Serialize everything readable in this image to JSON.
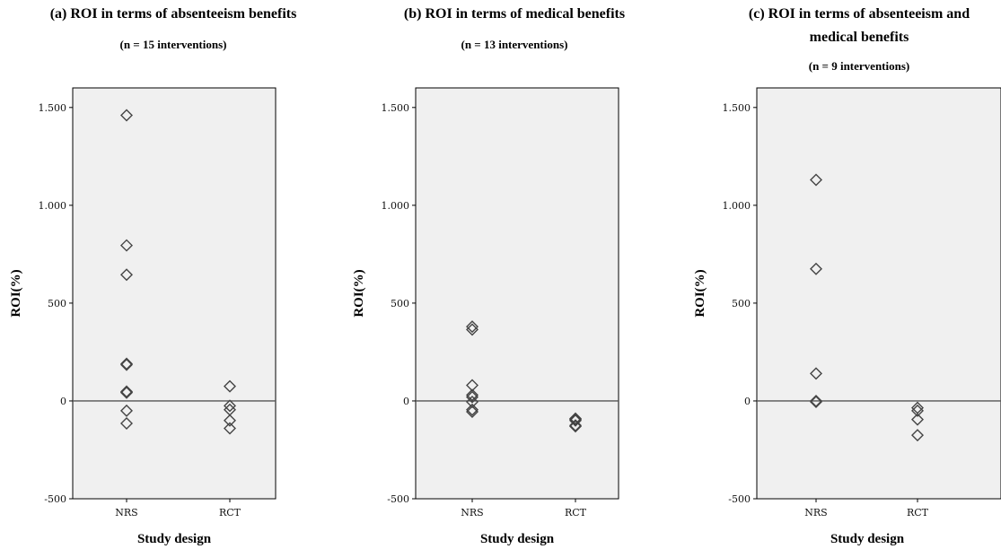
{
  "chart_data": [
    {
      "type": "scatter",
      "title": "(a) ROI in terms of absenteeism benefits",
      "subtitle": "(n = 15 interventions)",
      "xlabel": "Study design",
      "ylabel": "ROI(%)",
      "categories": [
        "NRS",
        "RCT"
      ],
      "ylim": [
        -500,
        1600
      ],
      "yticks": [
        -500,
        0,
        500,
        1000,
        1500
      ],
      "ytick_labels": [
        "-500",
        "0",
        "500",
        "1.000",
        "1.500"
      ],
      "reference_line": 0,
      "points": [
        {
          "x": "NRS",
          "y": 1460
        },
        {
          "x": "NRS",
          "y": 795
        },
        {
          "x": "NRS",
          "y": 645
        },
        {
          "x": "NRS",
          "y": 190
        },
        {
          "x": "NRS",
          "y": 185
        },
        {
          "x": "NRS",
          "y": 48
        },
        {
          "x": "NRS",
          "y": 45
        },
        {
          "x": "NRS",
          "y": 42
        },
        {
          "x": "NRS",
          "y": -50
        },
        {
          "x": "NRS",
          "y": -115
        },
        {
          "x": "RCT",
          "y": 75
        },
        {
          "x": "RCT",
          "y": -25
        },
        {
          "x": "RCT",
          "y": -45
        },
        {
          "x": "RCT",
          "y": -100
        },
        {
          "x": "RCT",
          "y": -140
        }
      ]
    },
    {
      "type": "scatter",
      "title": "(b) ROI in terms of medical benefits",
      "subtitle": "(n = 13 interventions)",
      "xlabel": "Study design",
      "ylabel": "ROI(%)",
      "categories": [
        "NRS",
        "RCT"
      ],
      "ylim": [
        -500,
        1600
      ],
      "yticks": [
        -500,
        0,
        500,
        1000,
        1500
      ],
      "ytick_labels": [
        "-500",
        "0",
        "500",
        "1.000",
        "1.500"
      ],
      "reference_line": 0,
      "points": [
        {
          "x": "NRS",
          "y": 380
        },
        {
          "x": "NRS",
          "y": 365
        },
        {
          "x": "NRS",
          "y": 80
        },
        {
          "x": "NRS",
          "y": 30
        },
        {
          "x": "NRS",
          "y": 20
        },
        {
          "x": "NRS",
          "y": -5
        },
        {
          "x": "NRS",
          "y": -45
        },
        {
          "x": "NRS",
          "y": -55
        },
        {
          "x": "RCT",
          "y": -90
        },
        {
          "x": "RCT",
          "y": -95
        },
        {
          "x": "RCT",
          "y": -100
        },
        {
          "x": "RCT",
          "y": -125
        },
        {
          "x": "RCT",
          "y": -130
        }
      ]
    },
    {
      "type": "scatter",
      "title": "(c) ROI in terms of absenteeism and medical benefits",
      "title_lines": [
        "(c) ROI in terms of absenteeism and",
        "medical benefits"
      ],
      "subtitle": "(n = 9 interventions)",
      "xlabel": "Study design",
      "ylabel": "ROI(%)",
      "categories": [
        "NRS",
        "RCT"
      ],
      "ylim": [
        -500,
        1600
      ],
      "yticks": [
        -500,
        0,
        500,
        1000,
        1500
      ],
      "ytick_labels": [
        "-500",
        "0",
        "500",
        "1.000",
        "1.500"
      ],
      "reference_line": 0,
      "points": [
        {
          "x": "NRS",
          "y": 1130
        },
        {
          "x": "NRS",
          "y": 675
        },
        {
          "x": "NRS",
          "y": 140
        },
        {
          "x": "NRS",
          "y": 0
        },
        {
          "x": "NRS",
          "y": -5
        },
        {
          "x": "RCT",
          "y": -35
        },
        {
          "x": "RCT",
          "y": -50
        },
        {
          "x": "RCT",
          "y": -95
        },
        {
          "x": "RCT",
          "y": -175
        }
      ]
    }
  ]
}
